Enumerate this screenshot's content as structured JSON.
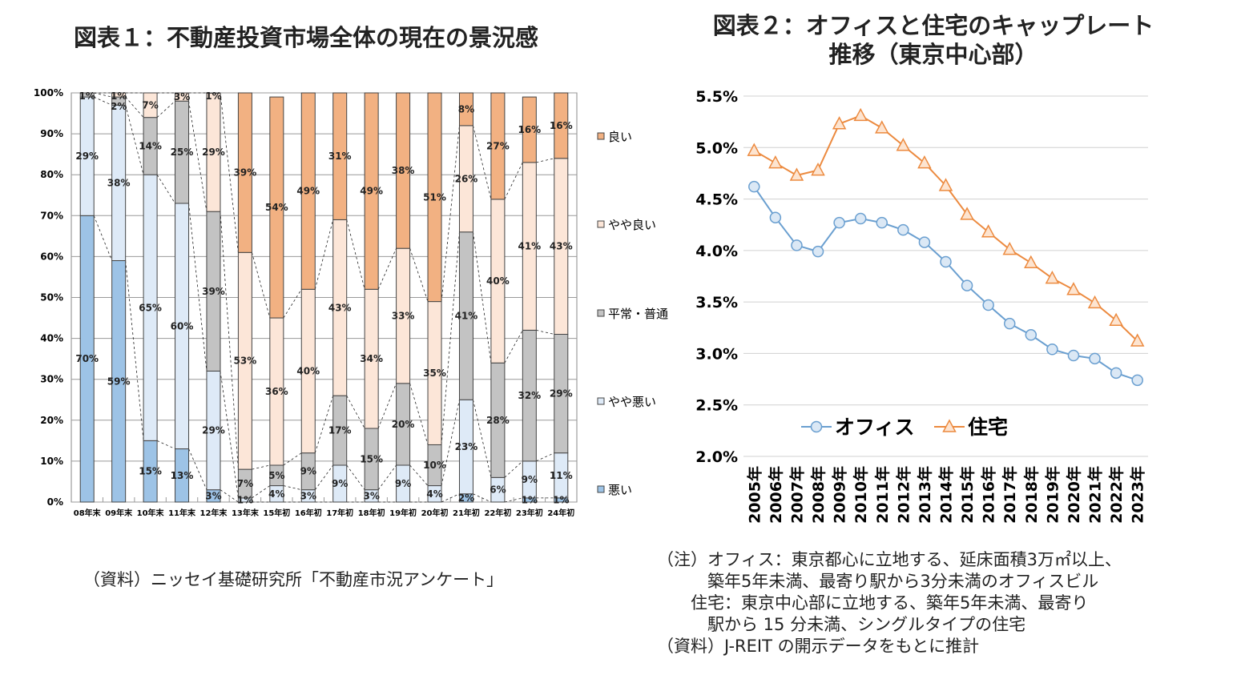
{
  "chart_data": [
    {
      "type": "bar",
      "stacked": true,
      "title": "図表１：不動産投資市場全体の現在の景況感",
      "categories": [
        "08年末",
        "09年末",
        "10年末",
        "11年末",
        "12年末",
        "13年末",
        "15年初",
        "16年初",
        "17年初",
        "18年初",
        "19年初",
        "20年初",
        "21年初",
        "22年初",
        "23年初",
        "24年初"
      ],
      "series": [
        {
          "name": "悪い",
          "color": "#9dc3e6",
          "values": [
            70,
            59,
            15,
            13,
            3,
            0,
            0,
            0,
            0,
            0,
            0,
            0,
            2,
            0,
            1,
            1
          ]
        },
        {
          "name": "やや悪い",
          "color": "#deeaf7",
          "values": [
            29,
            38,
            65,
            60,
            29,
            1,
            4,
            3,
            9,
            3,
            9,
            4,
            23,
            6,
            9,
            11
          ]
        },
        {
          "name": "平常・普通",
          "color": "#c3c3c3",
          "values": [
            1,
            2,
            14,
            25,
            39,
            7,
            5,
            9,
            17,
            15,
            20,
            10,
            41,
            28,
            32,
            29
          ]
        },
        {
          "name": "やや良い",
          "color": "#fce6d8",
          "values": [
            0,
            1,
            7,
            3,
            29,
            53,
            36,
            40,
            43,
            34,
            33,
            35,
            26,
            40,
            41,
            43
          ]
        },
        {
          "name": "良い",
          "color": "#f2b182",
          "values": [
            0,
            0,
            0,
            0,
            1,
            39,
            54,
            49,
            31,
            49,
            38,
            51,
            8,
            27,
            16,
            16
          ]
        }
      ],
      "yticks": [
        "0%",
        "10%",
        "20%",
        "30%",
        "40%",
        "50%",
        "60%",
        "70%",
        "80%",
        "90%",
        "100%"
      ],
      "ylim": [
        0,
        100
      ],
      "grid": true,
      "legend": "right",
      "source": "（資料）ニッセイ基礎研究所「不動産市況アンケート」"
    },
    {
      "type": "line",
      "title": "図表２：オフィスと住宅のキャップレート推移（東京中心部）",
      "categories": [
        "2005年",
        "2006年",
        "2007年",
        "2008年",
        "2009年",
        "2010年",
        "2011年",
        "2012年",
        "2013年",
        "2014年",
        "2015年",
        "2016年",
        "2017年",
        "2018年",
        "2019年",
        "2020年",
        "2021年",
        "2022年",
        "2023年"
      ],
      "series": [
        {
          "name": "オフィス",
          "color": "#6a9fd0",
          "marker": "circle",
          "values": [
            4.62,
            4.32,
            4.05,
            3.99,
            4.27,
            4.31,
            4.27,
            4.2,
            4.08,
            3.89,
            3.66,
            3.47,
            3.29,
            3.18,
            3.04,
            2.98,
            2.95,
            2.81,
            2.74
          ]
        },
        {
          "name": "住宅",
          "color": "#ec8a3f",
          "marker": "triangle",
          "values": [
            4.97,
            4.85,
            4.73,
            4.78,
            5.23,
            5.31,
            5.19,
            5.02,
            4.85,
            4.63,
            4.35,
            4.18,
            4.01,
            3.88,
            3.73,
            3.62,
            3.49,
            3.32,
            3.12
          ]
        }
      ],
      "yticks": [
        "2.0%",
        "2.5%",
        "3.0%",
        "3.5%",
        "4.0%",
        "4.5%",
        "5.0%",
        "5.5%"
      ],
      "ylim": [
        2.0,
        5.5
      ],
      "grid": true,
      "legend": "bottom-left inside",
      "notes": [
        "（注）オフィス：東京都心に立地する、延床面積3万㎡以上、",
        "　　　築年5年未満、最寄り駅から3分未満のオフィスビル",
        "　　住宅：東京中心部に立地する、築年5年未満、最寄り",
        "　　　駅から 15 分未満、シングルタイプの住宅",
        "（資料）J-REIT の開示データをもとに推計"
      ]
    }
  ]
}
